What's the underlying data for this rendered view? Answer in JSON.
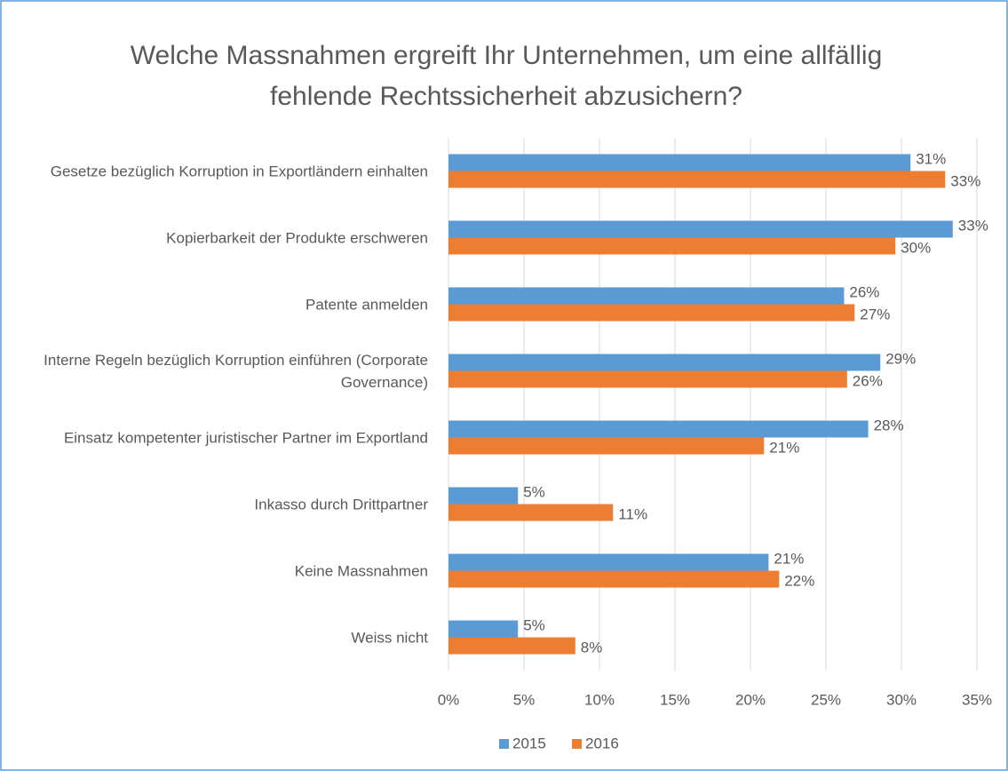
{
  "chart_data": {
    "type": "bar",
    "orientation": "horizontal",
    "title": "Welche Massnahmen ergreift Ihr Unternehmen, um eine allfällig fehlende Rechtssicherheit abzusichern?",
    "categories": [
      "Gesetze bezüglich Korruption in Exportländern einhalten",
      "Kopierbarkeit der Produkte erschweren",
      "Patente anmelden",
      "Interne Regeln bezüglich Korruption einführen (Corporate Governance)",
      "Einsatz kompetenter juristischer Partner im Exportland",
      "Inkasso durch Drittpartner",
      "Keine Massnahmen",
      "Weiss nicht"
    ],
    "series": [
      {
        "name": "2015",
        "color": "#5b9bd5",
        "values": [
          30.6,
          33.4,
          26.2,
          28.6,
          27.8,
          4.6,
          21.2,
          4.6
        ],
        "value_labels": [
          "31%",
          "33%",
          "26%",
          "29%",
          "28%",
          "5%",
          "21%",
          "5%"
        ]
      },
      {
        "name": "2016",
        "color": "#ed7d31",
        "values": [
          32.9,
          29.6,
          26.9,
          26.4,
          20.9,
          10.9,
          21.9,
          8.4
        ],
        "value_labels": [
          "33%",
          "30%",
          "27%",
          "26%",
          "21%",
          "11%",
          "22%",
          "8%"
        ]
      }
    ],
    "xlim": [
      0,
      35
    ],
    "xticks": [
      {
        "value": 0,
        "label": "0%"
      },
      {
        "value": 5,
        "label": "5%"
      },
      {
        "value": 10,
        "label": "10%"
      },
      {
        "value": 15,
        "label": "15%"
      },
      {
        "value": 20,
        "label": "20%"
      },
      {
        "value": 25,
        "label": "25%"
      },
      {
        "value": 30,
        "label": "30%"
      },
      {
        "value": 35,
        "label": "35%"
      }
    ],
    "grid": true,
    "legend": "bottom"
  }
}
